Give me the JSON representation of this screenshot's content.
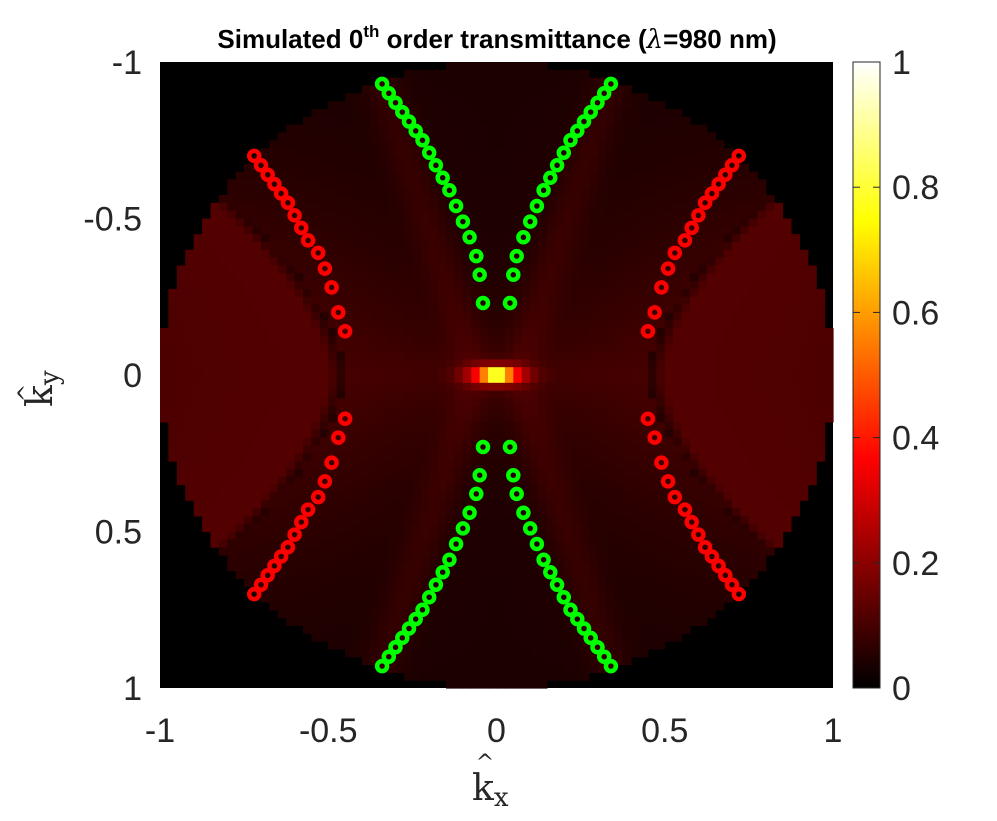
{
  "chart_data": {
    "type": "heatmap",
    "title": {
      "prefix": "Simulated 0",
      "sup": "th",
      "middle": " order transmittance (",
      "lambda": "λ",
      "suffix": "=980 nm)"
    },
    "xlabel": {
      "base": "k",
      "sub": "x",
      "hat": "^"
    },
    "ylabel": {
      "base": "k",
      "sub": "y",
      "hat": "^"
    },
    "xlim": [
      -1,
      1
    ],
    "ylim": [
      -1,
      1
    ],
    "y_axis_reversed": true,
    "xticks": [
      "-1",
      "-0.5",
      "0",
      "0.5",
      "1"
    ],
    "yticks": [
      "-1",
      "-0.5",
      "0",
      "0.5",
      "1"
    ],
    "colorbar": {
      "colormap": "hot",
      "range": [
        0,
        1
      ],
      "ticks": [
        "0",
        "0.2",
        "0.4",
        "0.6",
        "0.8",
        "1"
      ]
    },
    "pupil_radius": 1,
    "peak": {
      "kx": 0,
      "ky": 0,
      "value": 1
    },
    "series": [
      {
        "color": "#ff0000",
        "marker": "o",
        "branch": "left",
        "points": [
          [
            -0.72,
            -0.7
          ],
          [
            -0.7,
            -0.67
          ],
          [
            -0.68,
            -0.64
          ],
          [
            -0.66,
            -0.61
          ],
          [
            -0.64,
            -0.58
          ],
          [
            -0.62,
            -0.55
          ],
          [
            -0.6,
            -0.51
          ],
          [
            -0.58,
            -0.47
          ],
          [
            -0.56,
            -0.43
          ],
          [
            -0.53,
            -0.39
          ],
          [
            -0.51,
            -0.34
          ],
          [
            -0.49,
            -0.28
          ],
          [
            -0.47,
            -0.2
          ],
          [
            -0.45,
            -0.14
          ],
          [
            -0.45,
            0.14
          ],
          [
            -0.47,
            0.2
          ],
          [
            -0.49,
            0.28
          ],
          [
            -0.51,
            0.34
          ],
          [
            -0.53,
            0.39
          ],
          [
            -0.56,
            0.43
          ],
          [
            -0.58,
            0.47
          ],
          [
            -0.6,
            0.51
          ],
          [
            -0.62,
            0.55
          ],
          [
            -0.64,
            0.58
          ],
          [
            -0.66,
            0.61
          ],
          [
            -0.68,
            0.64
          ],
          [
            -0.7,
            0.67
          ],
          [
            -0.72,
            0.7
          ]
        ]
      },
      {
        "color": "#ff0000",
        "marker": "o",
        "branch": "right",
        "points": [
          [
            0.72,
            -0.7
          ],
          [
            0.7,
            -0.67
          ],
          [
            0.68,
            -0.64
          ],
          [
            0.66,
            -0.61
          ],
          [
            0.64,
            -0.58
          ],
          [
            0.62,
            -0.55
          ],
          [
            0.6,
            -0.51
          ],
          [
            0.58,
            -0.47
          ],
          [
            0.56,
            -0.43
          ],
          [
            0.53,
            -0.39
          ],
          [
            0.51,
            -0.34
          ],
          [
            0.49,
            -0.28
          ],
          [
            0.47,
            -0.2
          ],
          [
            0.45,
            -0.14
          ],
          [
            0.45,
            0.14
          ],
          [
            0.47,
            0.2
          ],
          [
            0.49,
            0.28
          ],
          [
            0.51,
            0.34
          ],
          [
            0.53,
            0.39
          ],
          [
            0.56,
            0.43
          ],
          [
            0.58,
            0.47
          ],
          [
            0.6,
            0.51
          ],
          [
            0.62,
            0.55
          ],
          [
            0.64,
            0.58
          ],
          [
            0.66,
            0.61
          ],
          [
            0.68,
            0.64
          ],
          [
            0.7,
            0.67
          ],
          [
            0.72,
            0.7
          ]
        ]
      },
      {
        "color": "#00ff00",
        "marker": "o",
        "branch": "upper-left",
        "points": [
          [
            -0.34,
            -0.93
          ],
          [
            -0.32,
            -0.9
          ],
          [
            -0.3,
            -0.87
          ],
          [
            -0.28,
            -0.84
          ],
          [
            -0.26,
            -0.81
          ],
          [
            -0.24,
            -0.78
          ],
          [
            -0.22,
            -0.75
          ],
          [
            -0.2,
            -0.71
          ],
          [
            -0.18,
            -0.67
          ],
          [
            -0.16,
            -0.63
          ],
          [
            -0.14,
            -0.59
          ],
          [
            -0.12,
            -0.54
          ],
          [
            -0.1,
            -0.49
          ],
          [
            -0.08,
            -0.44
          ],
          [
            -0.06,
            -0.38
          ],
          [
            -0.05,
            -0.32
          ],
          [
            -0.04,
            -0.23
          ]
        ]
      },
      {
        "color": "#00ff00",
        "marker": "o",
        "branch": "upper-right",
        "points": [
          [
            0.34,
            -0.93
          ],
          [
            0.32,
            -0.9
          ],
          [
            0.3,
            -0.87
          ],
          [
            0.28,
            -0.84
          ],
          [
            0.26,
            -0.81
          ],
          [
            0.24,
            -0.78
          ],
          [
            0.22,
            -0.75
          ],
          [
            0.2,
            -0.71
          ],
          [
            0.18,
            -0.67
          ],
          [
            0.16,
            -0.63
          ],
          [
            0.14,
            -0.59
          ],
          [
            0.12,
            -0.54
          ],
          [
            0.1,
            -0.49
          ],
          [
            0.08,
            -0.44
          ],
          [
            0.06,
            -0.38
          ],
          [
            0.05,
            -0.32
          ],
          [
            0.04,
            -0.23
          ]
        ]
      },
      {
        "color": "#00ff00",
        "marker": "o",
        "branch": "lower-left",
        "points": [
          [
            -0.04,
            0.23
          ],
          [
            -0.05,
            0.32
          ],
          [
            -0.06,
            0.38
          ],
          [
            -0.08,
            0.44
          ],
          [
            -0.1,
            0.49
          ],
          [
            -0.12,
            0.54
          ],
          [
            -0.14,
            0.59
          ],
          [
            -0.16,
            0.63
          ],
          [
            -0.18,
            0.67
          ],
          [
            -0.2,
            0.71
          ],
          [
            -0.22,
            0.75
          ],
          [
            -0.24,
            0.78
          ],
          [
            -0.26,
            0.81
          ],
          [
            -0.28,
            0.84
          ],
          [
            -0.3,
            0.87
          ],
          [
            -0.32,
            0.9
          ],
          [
            -0.34,
            0.93
          ]
        ]
      },
      {
        "color": "#00ff00",
        "marker": "o",
        "branch": "lower-right",
        "points": [
          [
            0.04,
            0.23
          ],
          [
            0.05,
            0.32
          ],
          [
            0.06,
            0.38
          ],
          [
            0.08,
            0.44
          ],
          [
            0.1,
            0.49
          ],
          [
            0.12,
            0.54
          ],
          [
            0.14,
            0.59
          ],
          [
            0.16,
            0.63
          ],
          [
            0.18,
            0.67
          ],
          [
            0.2,
            0.71
          ],
          [
            0.22,
            0.75
          ],
          [
            0.24,
            0.78
          ],
          [
            0.26,
            0.81
          ],
          [
            0.28,
            0.84
          ],
          [
            0.3,
            0.87
          ],
          [
            0.32,
            0.9
          ],
          [
            0.34,
            0.93
          ]
        ]
      }
    ]
  }
}
